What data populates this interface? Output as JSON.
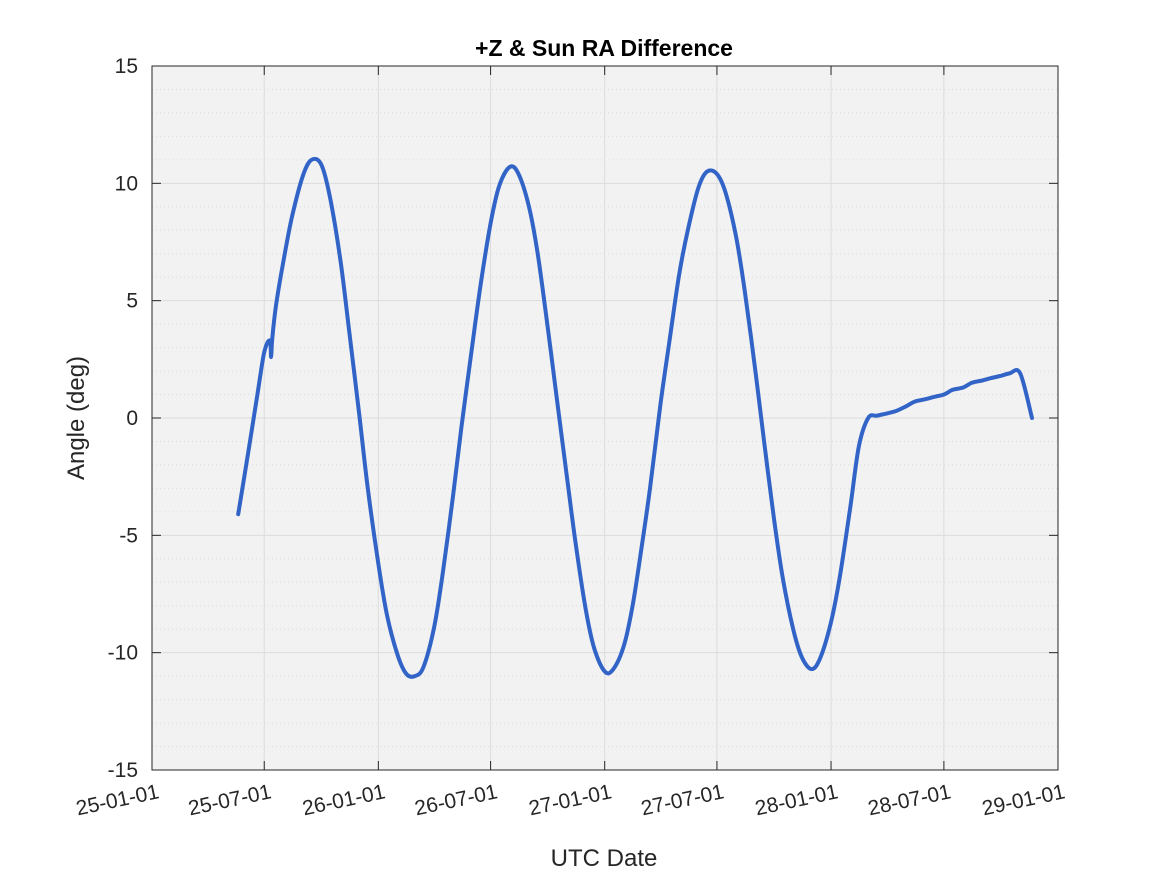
{
  "chart_data": {
    "type": "line",
    "title": "+Z & Sun RA Difference",
    "xlabel": "UTC Date",
    "ylabel": "Angle (deg)",
    "xlim": [
      "2025-01-01",
      "2029-01-01"
    ],
    "ylim": [
      -15,
      15
    ],
    "x_ticks": [
      "2025-01-01",
      "2025-07-01",
      "2026-01-01",
      "2026-07-01",
      "2027-01-01",
      "2027-07-01",
      "2028-01-01",
      "2028-07-01",
      "2029-01-01"
    ],
    "x_tick_labels": [
      "25-01-01",
      "25-07-01",
      "26-01-01",
      "26-07-01",
      "27-01-01",
      "27-07-01",
      "28-01-01",
      "28-07-01",
      "29-01-01"
    ],
    "y_ticks": [
      -15,
      -10,
      -5,
      0,
      5,
      10,
      15
    ],
    "y_tick_labels": [
      "-15",
      "-10",
      "-5",
      "0",
      "5",
      "10",
      "15"
    ],
    "y_minor_ticks": [
      -14,
      -13,
      -12,
      -11,
      -9,
      -8,
      -7,
      -6,
      -4,
      -3,
      -2,
      -1,
      1,
      2,
      3,
      4,
      6,
      7,
      8,
      9,
      11,
      12,
      13,
      14
    ],
    "grid": true,
    "minor_grid": true,
    "background_color": "#f2f2f2",
    "grid_color": "#dcdcdc",
    "series": [
      {
        "color": "#3264c8",
        "x": [
          "2025-05-20",
          "2025-06-05",
          "2025-06-20",
          "2025-07-01",
          "2025-07-10",
          "2025-07-12",
          "2025-07-14",
          "2025-07-20",
          "2025-08-01",
          "2025-08-15",
          "2025-09-01",
          "2025-09-15",
          "2025-10-01",
          "2025-10-15",
          "2025-11-01",
          "2025-11-15",
          "2025-12-01",
          "2025-12-15",
          "2026-01-01",
          "2026-01-15",
          "2026-02-01",
          "2026-02-15",
          "2026-03-01",
          "2026-03-15",
          "2026-04-01",
          "2026-04-15",
          "2026-05-01",
          "2026-05-15",
          "2026-06-01",
          "2026-06-15",
          "2026-07-01",
          "2026-07-15",
          "2026-08-01",
          "2026-08-15",
          "2026-09-01",
          "2026-09-15",
          "2026-10-01",
          "2026-10-15",
          "2026-11-01",
          "2026-11-15",
          "2026-12-01",
          "2026-12-15",
          "2027-01-01",
          "2027-01-15",
          "2027-02-01",
          "2027-02-15",
          "2027-03-01",
          "2027-03-15",
          "2027-04-01",
          "2027-04-15",
          "2027-05-01",
          "2027-05-15",
          "2027-06-01",
          "2027-06-15",
          "2027-07-01",
          "2027-07-15",
          "2027-08-01",
          "2027-08-15",
          "2027-09-01",
          "2027-09-15",
          "2027-10-01",
          "2027-10-15",
          "2027-11-01",
          "2027-11-15",
          "2027-12-01",
          "2027-12-15",
          "2028-01-01",
          "2028-01-15",
          "2028-02-01",
          "2028-02-15",
          "2028-03-01",
          "2028-03-15",
          "2028-04-01",
          "2028-04-15",
          "2028-05-01",
          "2028-05-15",
          "2028-06-01",
          "2028-06-15",
          "2028-07-01",
          "2028-07-15",
          "2028-08-01",
          "2028-08-15",
          "2028-09-01",
          "2028-09-15",
          "2028-10-01",
          "2028-10-15",
          "2028-11-01",
          "2028-11-20"
        ],
        "y": [
          -4.1,
          -1.5,
          1.0,
          2.8,
          3.3,
          2.6,
          3.4,
          4.8,
          6.7,
          8.6,
          10.3,
          11.0,
          10.8,
          9.4,
          6.7,
          3.7,
          0.2,
          -3.0,
          -6.2,
          -8.4,
          -10.1,
          -10.9,
          -11.0,
          -10.6,
          -8.9,
          -6.6,
          -3.4,
          -0.4,
          3.0,
          5.7,
          8.3,
          9.9,
          10.7,
          10.4,
          9.0,
          7.0,
          3.9,
          1.0,
          -2.5,
          -5.3,
          -8.1,
          -9.8,
          -10.8,
          -10.7,
          -9.7,
          -8.0,
          -5.6,
          -3.0,
          0.6,
          3.2,
          6.1,
          8.0,
          9.8,
          10.5,
          10.4,
          9.6,
          7.7,
          5.4,
          2.0,
          -1.0,
          -4.3,
          -6.8,
          -9.0,
          -10.2,
          -10.7,
          -10.2,
          -8.7,
          -6.8,
          -3.8,
          -1.2,
          0.0,
          0.1,
          0.2,
          0.3,
          0.5,
          0.7,
          0.8,
          0.9,
          1.0,
          1.2,
          1.3,
          1.5,
          1.6,
          1.7,
          1.8,
          1.9,
          1.9,
          0.0
        ]
      }
    ]
  }
}
